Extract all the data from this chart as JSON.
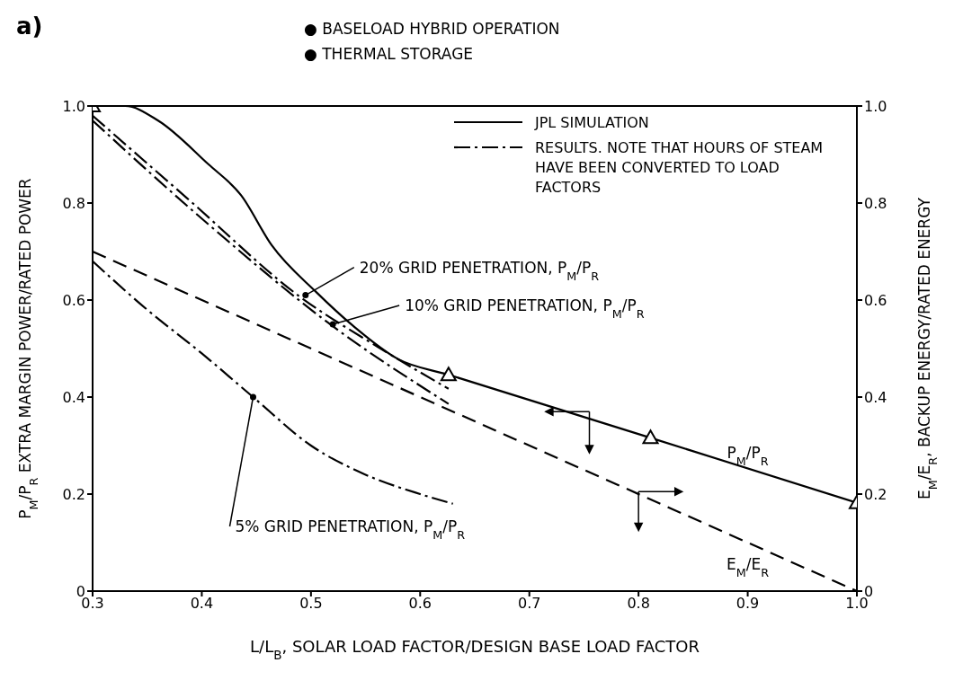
{
  "chart_data": {
    "type": "line",
    "title": "a)",
    "xlabel": "L/L$_{B}$, SOLAR LOAD FACTOR/DESIGN BASE LOAD FACTOR",
    "ylabel": "P$_{M}$/P$_{R}$ EXTRA MARGIN POWER/RATED POWER",
    "y2label": "E$_{M}$/E$_{R}$, BACKUP ENERGY/RATED ENERGY",
    "annotations": [
      "● BASELOAD HYBRID OPERATION",
      "● THERMAL STORAGE",
      {
        "text": "20% GRID PENETRATION, P$_{M}$/P$_{R}$",
        "x": 0.495,
        "y": 0.61
      },
      {
        "text": "10% GRID PENETRATION, P$_{M}$/P$_{R}$",
        "x": 0.52,
        "y": 0.55
      },
      {
        "text": "5% GRID PENETRATION, P$_{M}$/P$_{R}$",
        "x": 0.447,
        "y": 0.4
      },
      {
        "text": "P$_{M}$/P$_{R}$",
        "x": 0.9,
        "y": 0.255
      },
      {
        "text": "E$_{M}$/E$_{R}$",
        "x": 0.9,
        "y": 0.1
      }
    ],
    "series": [
      {
        "type": "line",
        "name": "JPL SIMULATION",
        "color": "#000000",
        "line_style": "solid",
        "x": [
          0.3,
          0.33,
          0.36,
          0.406,
          0.436,
          0.464,
          0.505,
          0.539,
          0.58,
          0.626,
          0.811,
          1.0
        ],
        "values": [
          1.0,
          1.0,
          0.97,
          0.88,
          0.816,
          0.713,
          0.616,
          0.546,
          0.478,
          0.446,
          0.316,
          0.182
        ]
      },
      {
        "type": "scatter",
        "color": "#000000",
        "marker": "triangle",
        "x": [
          0.3,
          0.626,
          0.811,
          1.0
        ],
        "values": [
          1.0,
          0.446,
          0.316,
          0.182
        ]
      },
      {
        "type": "line",
        "name": "RESULTS. NOTE THAT HOURS OF STEAM HAVE BEEN CONVERTED TO LOAD FACTORS",
        "color": "#000000",
        "line_style": "dashdot",
        "x": [
          0.3,
          0.386,
          0.491,
          0.56,
          0.626
        ],
        "values": [
          0.98,
          0.811,
          0.605,
          0.505,
          0.417
        ]
      },
      {
        "type": "line",
        "color": "#000000",
        "line_style": "dashdot",
        "x": [
          0.3,
          0.403,
          0.52,
          0.626
        ],
        "values": [
          0.97,
          0.762,
          0.546,
          0.386
        ]
      },
      {
        "type": "line",
        "color": "#000000",
        "line_style": "dashdot",
        "x": [
          0.3,
          0.35,
          0.4,
          0.447,
          0.5,
          0.55,
          0.6,
          0.63
        ],
        "values": [
          0.68,
          0.58,
          0.49,
          0.4,
          0.3,
          0.24,
          0.2,
          0.18
        ]
      },
      {
        "type": "line",
        "color": "#000000",
        "line_style": "dashed",
        "x": [
          0.3,
          1.0
        ],
        "values": [
          0.7,
          0.0
        ]
      }
    ],
    "xlim": [
      0.3,
      1.0
    ],
    "xticks": [
      0.3,
      0.4,
      0.5,
      0.6,
      0.7,
      0.8,
      0.9,
      {
        "value": 1.0,
        "label": "1.0"
      }
    ],
    "ylim": [
      0,
      1.0
    ],
    "yticks": [
      0,
      0.2,
      0.4,
      0.6,
      0.8,
      {
        "value": 1.0,
        "label": "1.0"
      }
    ],
    "y2lim": [
      0,
      1.0
    ],
    "y2ticks": [
      0,
      0.2,
      0.4,
      0.6,
      0.8,
      {
        "value": 1.0,
        "label": "1.0"
      }
    ],
    "legend": "top right",
    "marker": "none"
  }
}
